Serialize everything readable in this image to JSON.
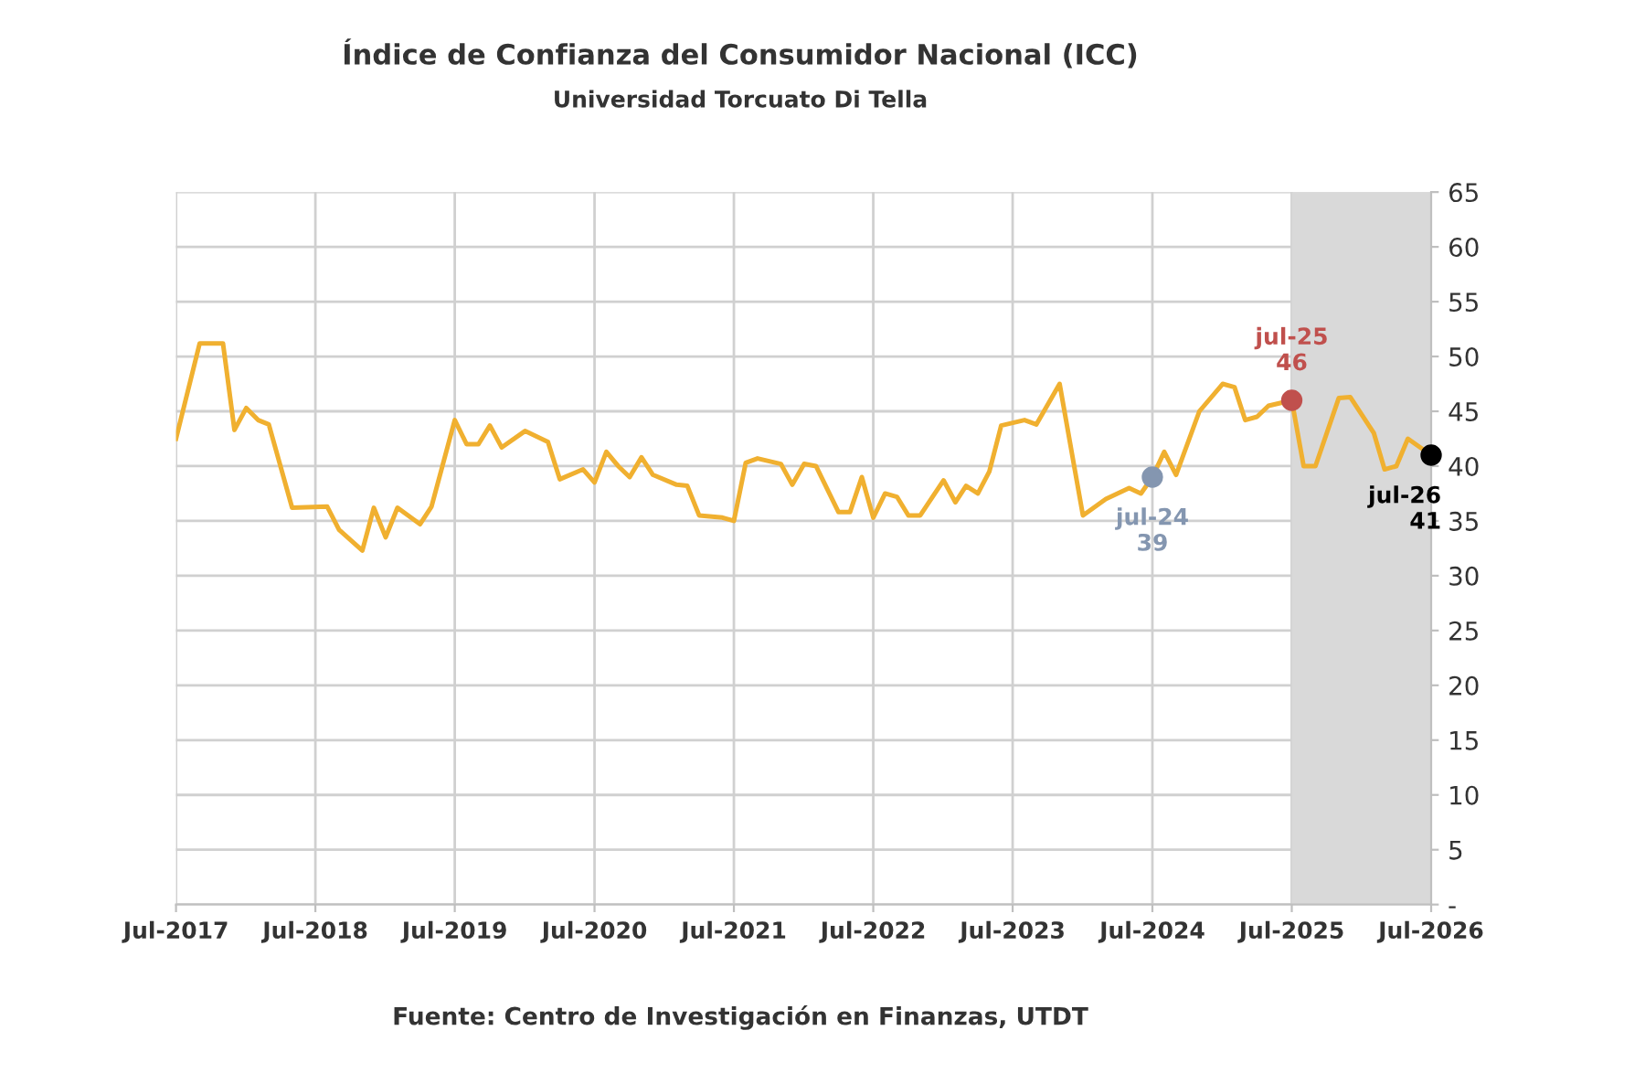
{
  "chart_data": {
    "type": "line",
    "title": "Índice de Confianza del Consumidor Nacional (ICC)",
    "subtitle": "Universidad Torcuato Di Tella",
    "series": [
      {
        "color": "#f0b030",
        "x": [
          "2017-07",
          "2017-09",
          "2017-11",
          "2017-12",
          "2018-01",
          "2018-02",
          "2018-03",
          "2018-05",
          "2018-08",
          "2018-09",
          "2018-11",
          "2018-12",
          "2019-01",
          "2019-02",
          "2019-04",
          "2019-05",
          "2019-07",
          "2019-08",
          "2019-09",
          "2019-10",
          "2019-11",
          "2020-01",
          "2020-03",
          "2020-04",
          "2020-06",
          "2020-07",
          "2020-08",
          "2020-09",
          "2020-10",
          "2020-11",
          "2020-12",
          "2021-02",
          "2021-03",
          "2021-04",
          "2021-06",
          "2021-07",
          "2021-08",
          "2021-09",
          "2021-11",
          "2021-12",
          "2022-01",
          "2022-02",
          "2022-04",
          "2022-05",
          "2022-06",
          "2022-07",
          "2022-08",
          "2022-09",
          "2022-10",
          "2022-11",
          "2023-01",
          "2023-02",
          "2023-03",
          "2023-04",
          "2023-05",
          "2023-06",
          "2023-08",
          "2023-09",
          "2023-11",
          "2024-01",
          "2024-03",
          "2024-05",
          "2024-06",
          "2024-07",
          "2024-08",
          "2024-09",
          "2024-11",
          "2025-01",
          "2025-02",
          "2025-03",
          "2025-04",
          "2025-05",
          "2025-07",
          "2025-08",
          "2025-09",
          "2025-11",
          "2025-12",
          "2026-02",
          "2026-03",
          "2026-04",
          "2026-05",
          "2026-07"
        ],
        "values": [
          42.5,
          51.2,
          51.2,
          43.3,
          45.3,
          44.2,
          43.8,
          36.2,
          36.3,
          34.2,
          32.3,
          36.2,
          33.5,
          36.2,
          34.7,
          36.3,
          44.2,
          42,
          42,
          43.7,
          41.7,
          43.2,
          42.2,
          38.8,
          39.7,
          38.5,
          41.3,
          40,
          39,
          40.8,
          39.2,
          38.3,
          38.2,
          35.5,
          35.3,
          35,
          40.3,
          40.7,
          40.2,
          38.3,
          40.2,
          40,
          35.8,
          35.8,
          39,
          35.3,
          37.5,
          37.2,
          35.5,
          35.5,
          38.7,
          36.7,
          38.2,
          37.5,
          39.5,
          43.7,
          44.2,
          43.8,
          47.5,
          35.5,
          37,
          38,
          37.5,
          39,
          41.3,
          39.2,
          45,
          47.5,
          47.2,
          44.2,
          44.5,
          45.5,
          46,
          40,
          40,
          46.2,
          46.3,
          43,
          39.7,
          40,
          42.5,
          41
        ]
      },
      {
        "type": "scatter",
        "marker": "circle",
        "x": [
          "2024-07",
          "2025-07",
          "2026-07"
        ],
        "values": [
          39,
          46,
          41
        ],
        "colors": [
          "#8496b0",
          "#c0504d",
          "#000000"
        ]
      }
    ],
    "annotations": [
      {
        "text": "jul-24\n39",
        "x": "2024-07",
        "y": 39
      },
      {
        "text": "jul-25\n46",
        "x": "2025-07",
        "y": 46
      },
      {
        "text": "jul-26\n41",
        "x": "2026-07",
        "y": 41
      },
      "Fuente: Centro de Investigación en Finanzas, UTDT"
    ],
    "bands": [
      {
        "axis": "x",
        "from": "2025-07",
        "to": "2026-07",
        "color": "#d9d9d9"
      }
    ],
    "xlim": [
      "2017-07",
      "2026-07"
    ],
    "xticks": [
      {
        "value": "2017-07",
        "label": "Jul-2017"
      },
      {
        "value": "2018-07",
        "label": "Jul-2018"
      },
      {
        "value": "2019-07",
        "label": "Jul-2019"
      },
      {
        "value": "2020-07",
        "label": "Jul-2020"
      },
      {
        "value": "2021-07",
        "label": "Jul-2021"
      },
      {
        "value": "2022-07",
        "label": "Jul-2022"
      },
      {
        "value": "2023-07",
        "label": "Jul-2023"
      },
      {
        "value": "2024-07",
        "label": "Jul-2024"
      },
      {
        "value": "2025-07",
        "label": "Jul-2025"
      },
      {
        "value": "2026-07",
        "label": "Jul-2026"
      }
    ],
    "ylim": [
      0,
      65
    ],
    "yticks": [
      {
        "value": 0,
        "label": "-"
      },
      5,
      10,
      15,
      20,
      25,
      30,
      35,
      40,
      45,
      50,
      55,
      60,
      65
    ],
    "grid": true,
    "legend": false,
    "line_style": "solid"
  }
}
